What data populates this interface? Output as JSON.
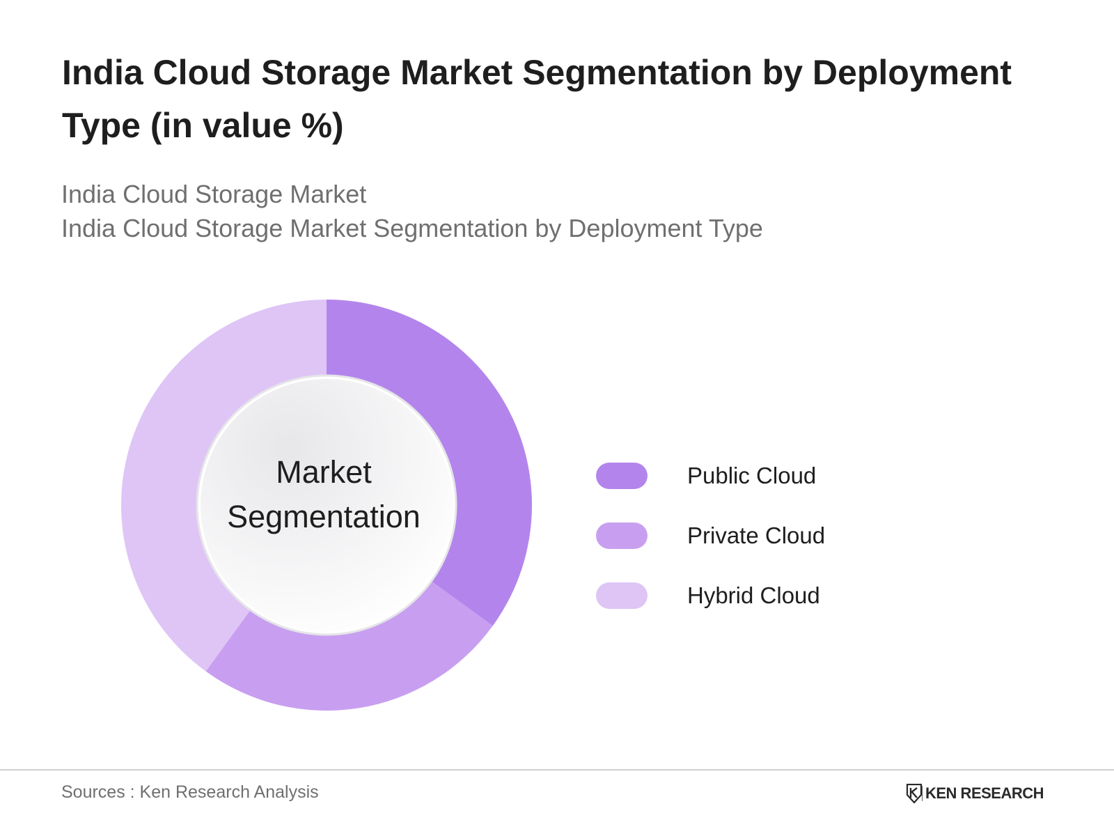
{
  "title": "India Cloud Storage Market Segmentation by Deployment Type (in value %)",
  "subtitles": [
    "India Cloud Storage Market",
    "India Cloud Storage Market Segmentation by Deployment Type"
  ],
  "center_label": [
    "Market",
    "Segmentation"
  ],
  "chart_data": {
    "type": "pie",
    "style": "donut",
    "categories": [
      "Public Cloud",
      "Private Cloud",
      "Hybrid Cloud"
    ],
    "values": [
      35,
      25,
      40
    ],
    "colors": [
      "#b385ec",
      "#c89ff0",
      "#dec5f6"
    ],
    "legend_position": "right"
  },
  "footer": {
    "source": "Sources : Ken Research Analysis",
    "logo_text": "KEN RESEARCH"
  }
}
